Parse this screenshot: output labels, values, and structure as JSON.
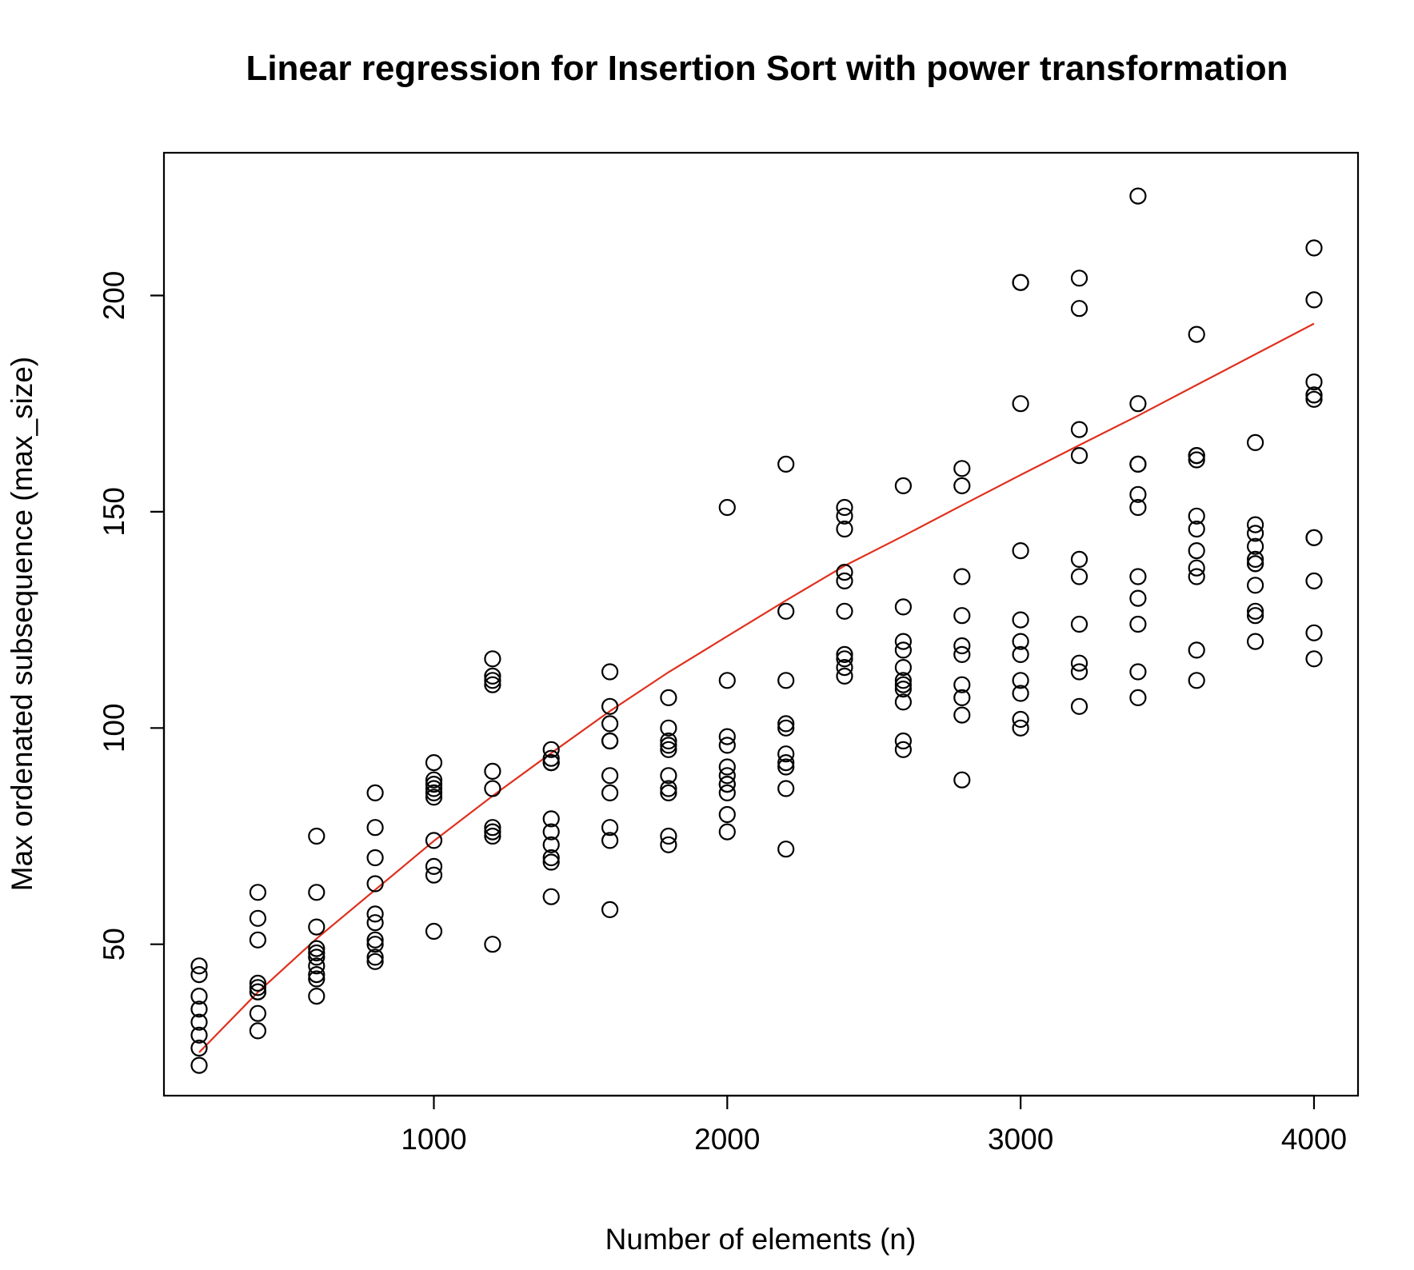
{
  "chart_data": {
    "type": "scatter",
    "title": "Linear regression for Insertion Sort with power transformation",
    "xlabel": "Number of elements (n)",
    "ylabel": "Max ordenated subsequence (max_size)",
    "xlim": [
      80,
      4150
    ],
    "ylim": [
      15,
      233
    ],
    "x_ticks": [
      1000,
      2000,
      3000,
      4000
    ],
    "y_ticks": [
      50,
      100,
      150,
      200
    ],
    "grid": false,
    "legend": "none",
    "colors": {
      "points": "#000000",
      "fit_line": "#e0301e",
      "frame": "#000000"
    },
    "series": [
      {
        "type": "scatter",
        "marker": "open-circle",
        "x": [
          200,
          200,
          200,
          200,
          200,
          200,
          200,
          200,
          400,
          400,
          400,
          400,
          400,
          400,
          400,
          400,
          400,
          600,
          600,
          600,
          600,
          600,
          600,
          600,
          600,
          600,
          600,
          800,
          800,
          800,
          800,
          800,
          800,
          800,
          800,
          800,
          800,
          1000,
          1000,
          1000,
          1000,
          1000,
          1000,
          1000,
          1000,
          1000,
          1000,
          1200,
          1200,
          1200,
          1200,
          1200,
          1200,
          1200,
          1200,
          1200,
          1200,
          1400,
          1400,
          1400,
          1400,
          1400,
          1400,
          1400,
          1400,
          1400,
          1400,
          1600,
          1600,
          1600,
          1600,
          1600,
          1600,
          1600,
          1600,
          1600,
          1600,
          1800,
          1800,
          1800,
          1800,
          1800,
          1800,
          1800,
          1800,
          1800,
          1800,
          2000,
          2000,
          2000,
          2000,
          2000,
          2000,
          2000,
          2000,
          2000,
          2000,
          2000,
          2200,
          2200,
          2200,
          2200,
          2200,
          2200,
          2200,
          2200,
          2200,
          2200,
          2400,
          2400,
          2400,
          2400,
          2400,
          2400,
          2400,
          2400,
          2400,
          2400,
          2600,
          2600,
          2600,
          2600,
          2600,
          2600,
          2600,
          2600,
          2600,
          2600,
          2600,
          2800,
          2800,
          2800,
          2800,
          2800,
          2800,
          2800,
          2800,
          2800,
          2800,
          3000,
          3000,
          3000,
          3000,
          3000,
          3000,
          3000,
          3000,
          3000,
          3000,
          3000,
          3200,
          3200,
          3200,
          3200,
          3200,
          3200,
          3200,
          3200,
          3200,
          3200,
          3400,
          3400,
          3400,
          3400,
          3400,
          3400,
          3400,
          3400,
          3400,
          3400,
          3400,
          3600,
          3600,
          3600,
          3600,
          3600,
          3600,
          3600,
          3600,
          3600,
          3600,
          3600,
          3800,
          3800,
          3800,
          3800,
          3800,
          3800,
          3800,
          3800,
          3800,
          3800,
          3800,
          4000,
          4000,
          4000,
          4000,
          4000,
          4000,
          4000,
          4000,
          4000,
          4000,
          4000
        ],
        "y": [
          45,
          43,
          38,
          35,
          32,
          29,
          26,
          22,
          62,
          56,
          51,
          41,
          40,
          39,
          39,
          34,
          30,
          75,
          62,
          54,
          49,
          48,
          47,
          45,
          43,
          42,
          38,
          85,
          77,
          70,
          64,
          57,
          55,
          51,
          50,
          47,
          46,
          92,
          88,
          87,
          85,
          84,
          74,
          68,
          66,
          53,
          86,
          116,
          112,
          110,
          90,
          86,
          77,
          76,
          75,
          50,
          111,
          95,
          92,
          79,
          76,
          73,
          69,
          61,
          93,
          70,
          92,
          113,
          105,
          101,
          97,
          89,
          85,
          77,
          74,
          58,
          97,
          107,
          100,
          97,
          96,
          95,
          89,
          86,
          85,
          75,
          73,
          151,
          111,
          98,
          96,
          91,
          89,
          87,
          85,
          80,
          76,
          87,
          161,
          127,
          111,
          101,
          100,
          94,
          92,
          91,
          86,
          72,
          151,
          149,
          146,
          136,
          134,
          127,
          117,
          116,
          114,
          112,
          156,
          128,
          120,
          118,
          114,
          111,
          110,
          106,
          97,
          95,
          109,
          160,
          156,
          135,
          126,
          119,
          117,
          110,
          107,
          103,
          88,
          203,
          175,
          141,
          125,
          120,
          117,
          111,
          108,
          102,
          100,
          203,
          204,
          197,
          169,
          163,
          139,
          135,
          124,
          115,
          113,
          105,
          223,
          175,
          161,
          154,
          151,
          135,
          130,
          124,
          113,
          107,
          161,
          191,
          163,
          162,
          149,
          146,
          141,
          137,
          135,
          118,
          111,
          163,
          166,
          147,
          145,
          142,
          139,
          138,
          133,
          127,
          126,
          120,
          138,
          211,
          199,
          180,
          177,
          176,
          144,
          134,
          122,
          116,
          144,
          177
        ]
      },
      {
        "type": "line",
        "x": [
          200,
          400,
          600,
          800,
          1000,
          1200,
          1400,
          1600,
          1800,
          2000,
          2200,
          2400,
          2600,
          2800,
          3000,
          3200,
          3400,
          3600,
          3800,
          4000
        ],
        "y": [
          25,
          38.9,
          51.3,
          62.6,
          73.9,
          84.3,
          94.2,
          103.9,
          112.9,
          121.2,
          129.5,
          137.5,
          144.4,
          151.5,
          158.5,
          165.4,
          172.2,
          179.3,
          186.4,
          193.5
        ]
      }
    ]
  }
}
